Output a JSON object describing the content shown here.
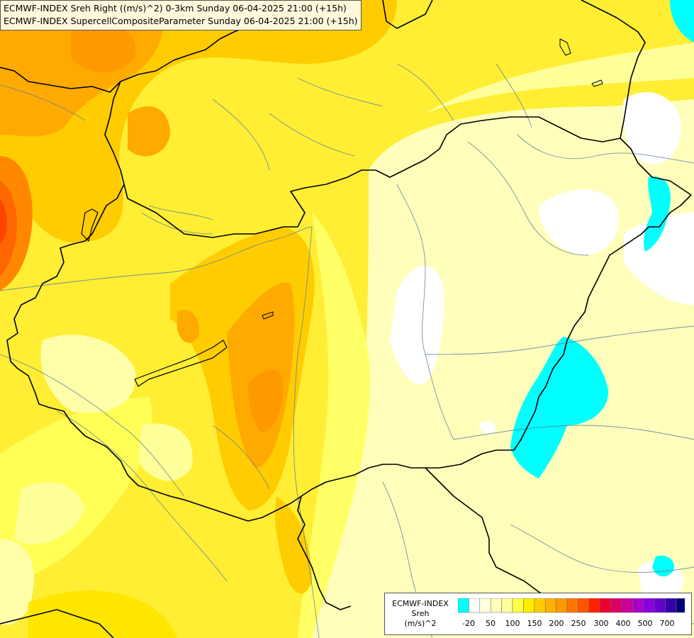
{
  "title": {
    "line1": "ECMWF-INDEX Sreh Right ((m/s)^2) 0-3km Sunday 06-04-2025 21:00 (+15h)",
    "line2": "ECMWF-INDEX SupercellCompositeParameter Sunday 06-04-2025 21:00 (+15h)"
  },
  "legend": {
    "source": "ECMWF-INDEX",
    "variable": "Sreh",
    "unit": "(m/s)^2",
    "tick_labels": [
      "-20",
      "50",
      "100",
      "150",
      "200",
      "250",
      "300",
      "400",
      "500",
      "700"
    ],
    "colors": [
      "#00ffff",
      "#ffffff",
      "#ffffdd",
      "#ffffbb",
      "#ffff99",
      "#ffff44",
      "#ffee00",
      "#ffcc00",
      "#ffb000",
      "#ff9900",
      "#ff7700",
      "#ff5500",
      "#ff2200",
      "#ee0033",
      "#dd0066",
      "#cc0099",
      "#aa00cc",
      "#8800dd",
      "#6600cc",
      "#3300aa",
      "#000077"
    ]
  },
  "palette": {
    "very_light": "#ffffcc",
    "light": "#ffff99",
    "yellow": "#ffee22",
    "gold": "#ffcc00",
    "orange_light": "#ffaa00",
    "orange": "#ff8800",
    "red": "#ff4400",
    "cyan": "#00ffff",
    "white": "#ffffff"
  }
}
